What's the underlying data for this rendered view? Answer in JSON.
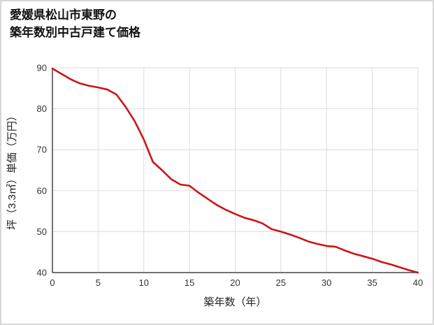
{
  "title": {
    "line1": "愛媛県松山市東野の",
    "line2": "築年数別中古戸建て価格"
  },
  "chart_data": {
    "type": "line",
    "title": "愛媛県松山市東野の築年数別中古戸建て価格",
    "title_lines": [
      "愛媛県松山市東野の",
      "築年数別中古戸建て価格"
    ],
    "xlabel": "築年数（年）",
    "ylabel": "坪（3.3㎡）単価（万円）",
    "xlim": [
      0,
      40
    ],
    "ylim": [
      40,
      90
    ],
    "xticks": [
      0,
      5,
      10,
      15,
      20,
      25,
      30,
      35,
      40
    ],
    "yticks": [
      40,
      50,
      60,
      70,
      80,
      90
    ],
    "grid": true,
    "legend": false,
    "x": [
      0,
      1,
      2,
      3,
      4,
      5,
      6,
      7,
      8,
      9,
      10,
      11,
      12,
      13,
      14,
      15,
      16,
      17,
      18,
      19,
      20,
      21,
      22,
      23,
      24,
      25,
      26,
      27,
      28,
      29,
      30,
      31,
      32,
      33,
      34,
      35,
      36,
      37,
      38,
      39,
      40
    ],
    "series": [
      {
        "name": "坪単価",
        "values": [
          89.8,
          88.5,
          87.2,
          86.2,
          85.6,
          85.2,
          84.7,
          83.5,
          80.5,
          77.0,
          72.5,
          67.0,
          65.0,
          62.8,
          61.5,
          61.2,
          59.5,
          58.0,
          56.5,
          55.3,
          54.3,
          53.4,
          52.8,
          52.0,
          50.6,
          50.0,
          49.3,
          48.5,
          47.6,
          47.0,
          46.5,
          46.3,
          45.4,
          44.6,
          44.0,
          43.4,
          42.6,
          42.0,
          41.3,
          40.6,
          40.0
        ]
      }
    ],
    "colors": {
      "line": "#cc1417",
      "grid": "#dcdcdc",
      "axis": "#444444",
      "tick_text": "#333333",
      "axis_title_text": "#222222"
    }
  }
}
